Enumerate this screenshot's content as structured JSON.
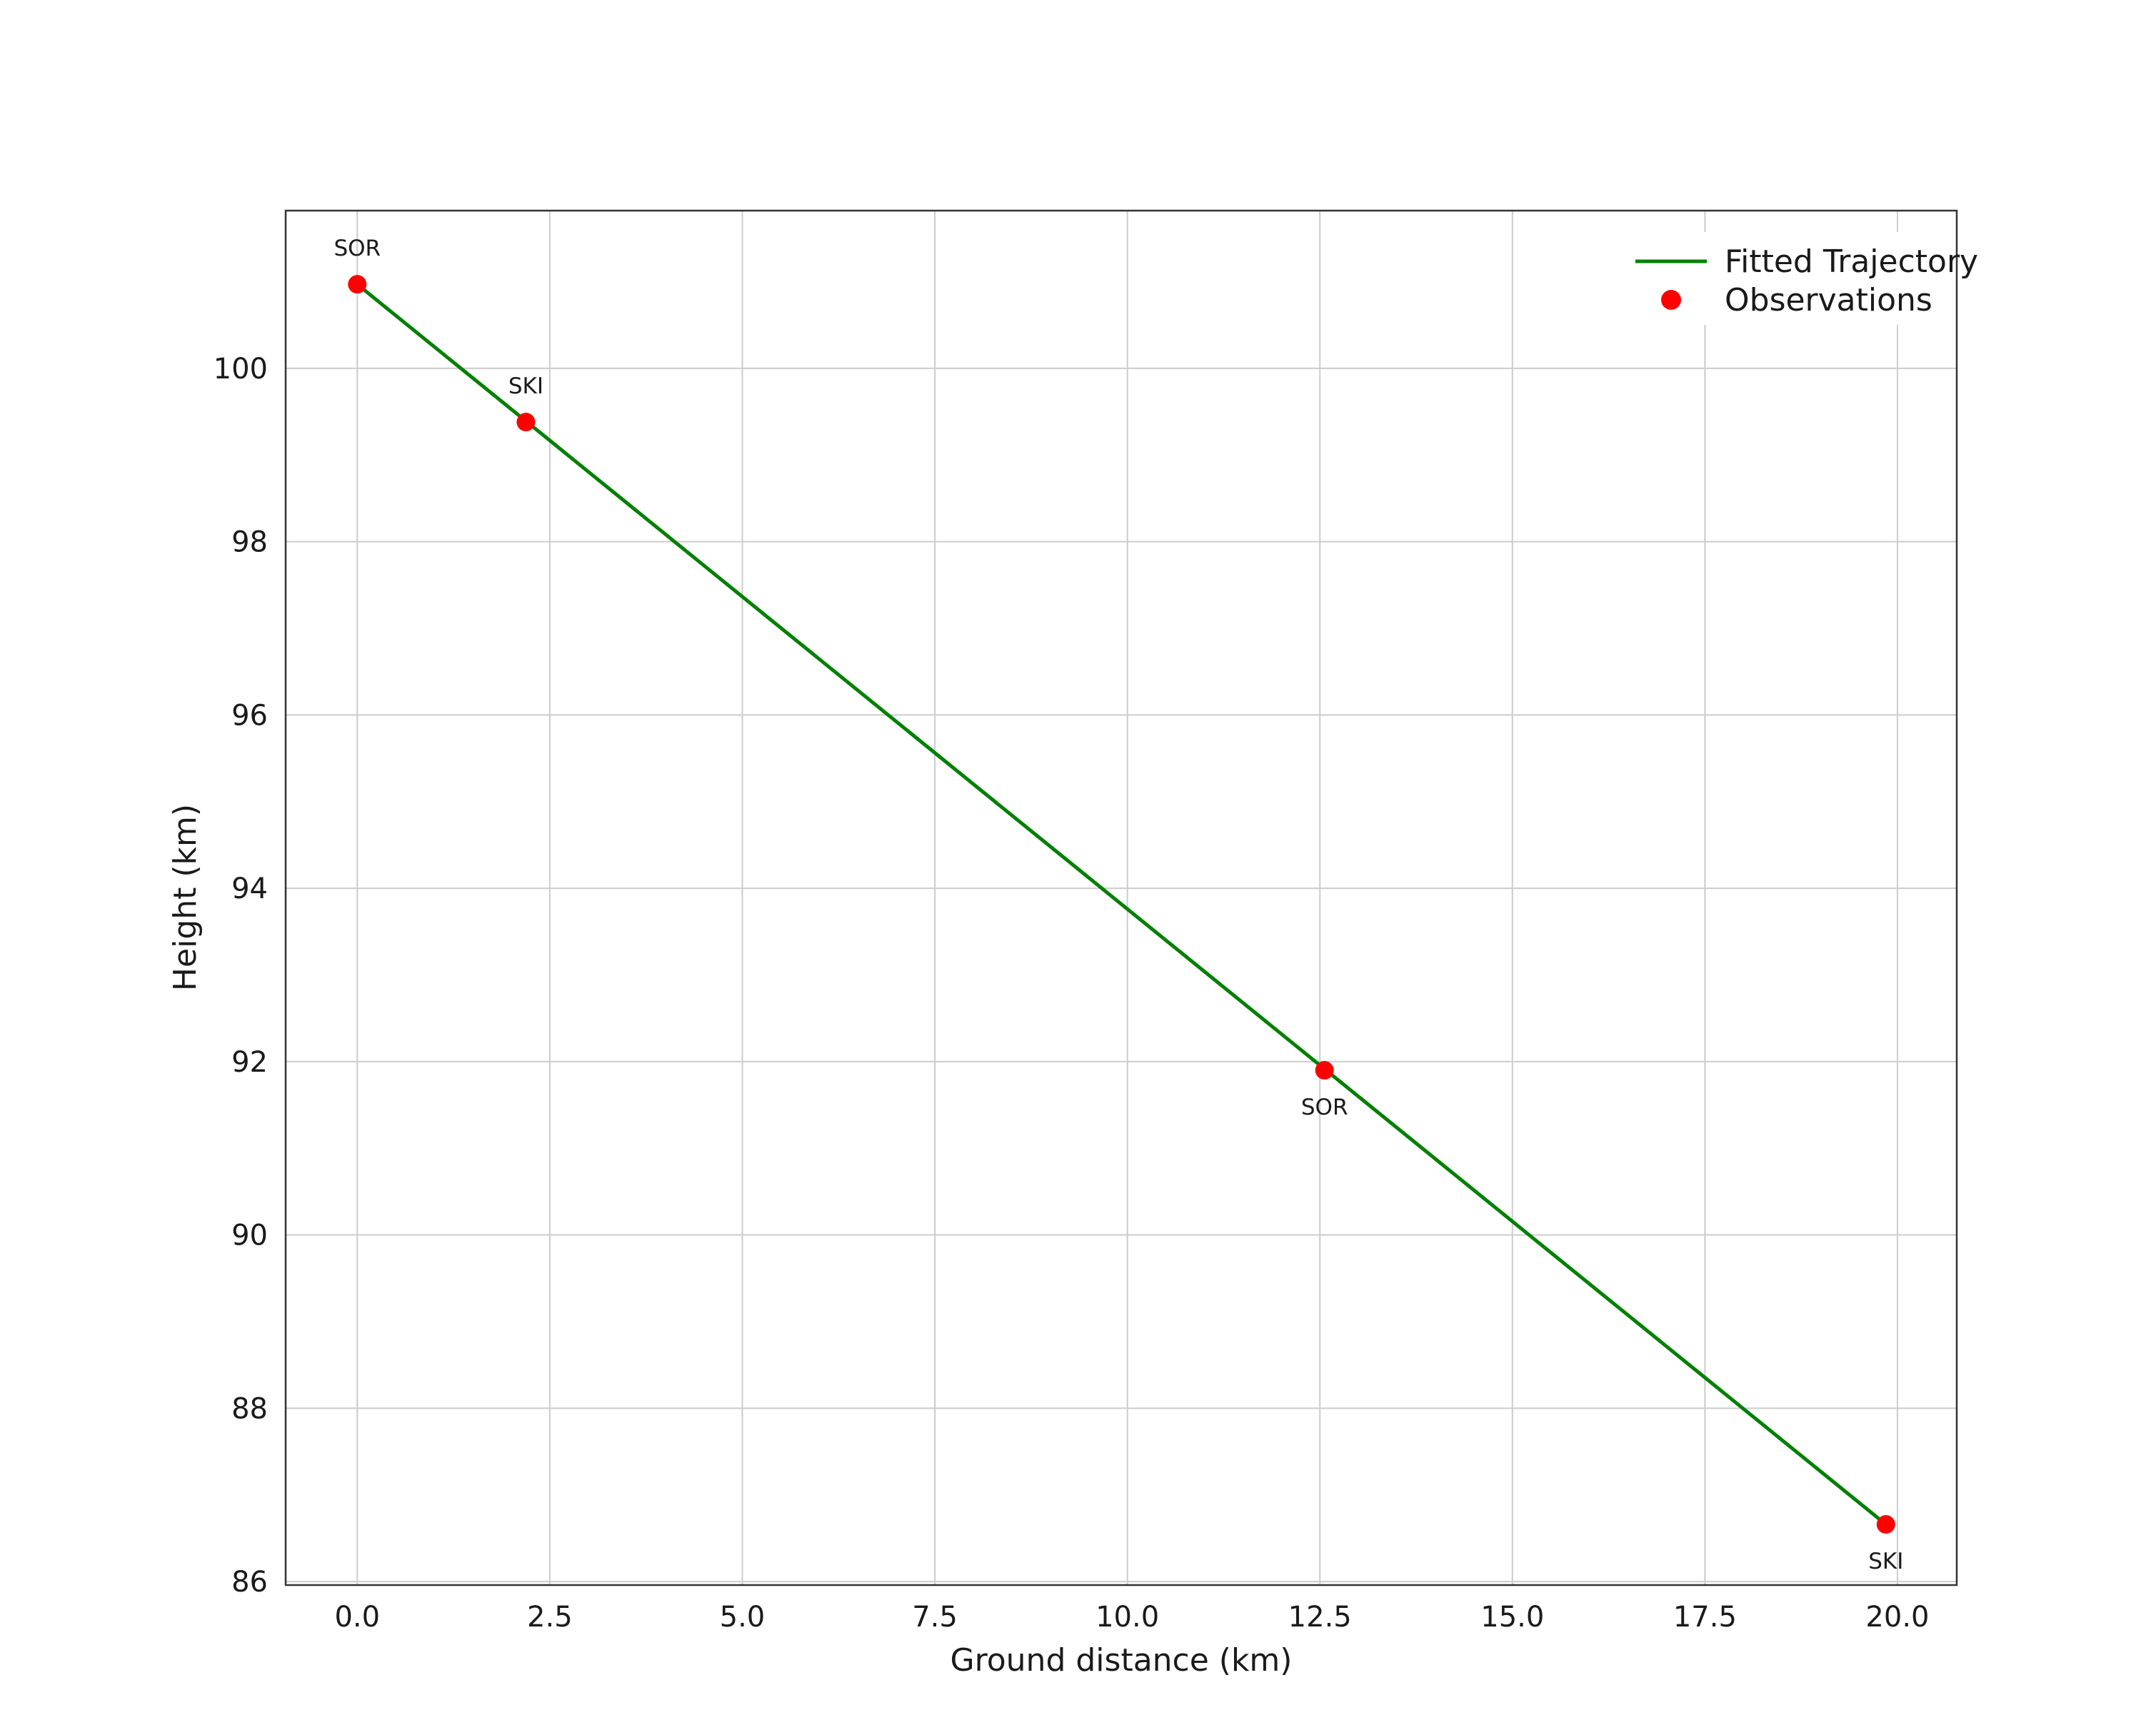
{
  "colors": {
    "background": "#ffffff",
    "grid": "#cccccc",
    "frame": "#333333",
    "text": "#1a1a1a",
    "line": "#008000",
    "marker": "#ff0000"
  },
  "chart_data": {
    "type": "line",
    "title": "",
    "xlabel": "Ground distance (km)",
    "ylabel": "Height (km)",
    "xlim": [
      -0.93,
      20.77
    ],
    "ylim": [
      85.96,
      101.82
    ],
    "xticks": [
      0.0,
      2.5,
      5.0,
      7.5,
      10.0,
      12.5,
      15.0,
      17.5,
      20.0
    ],
    "xtick_labels": [
      "0.0",
      "2.5",
      "5.0",
      "7.5",
      "10.0",
      "12.5",
      "15.0",
      "17.5",
      "20.0"
    ],
    "yticks": [
      86,
      88,
      90,
      92,
      94,
      96,
      98,
      100
    ],
    "ytick_labels": [
      "86",
      "88",
      "90",
      "92",
      "94",
      "96",
      "98",
      "100"
    ],
    "grid": true,
    "legend_position": "upper right",
    "series": [
      {
        "name": "Fitted Trajectory",
        "type": "line",
        "color": "#008000",
        "x": [
          0.0,
          19.85
        ],
        "y": [
          100.97,
          86.66
        ]
      },
      {
        "name": "Observations",
        "type": "scatter",
        "color": "#ff0000",
        "points": [
          {
            "x": 0.0,
            "y": 100.97,
            "label": "SOR",
            "label_pos": "above"
          },
          {
            "x": 2.19,
            "y": 99.38,
            "label": "SKI",
            "label_pos": "above"
          },
          {
            "x": 12.56,
            "y": 91.9,
            "label": "SOR",
            "label_pos": "below"
          },
          {
            "x": 19.85,
            "y": 86.66,
            "label": "SKI",
            "label_pos": "below"
          }
        ]
      }
    ],
    "legend": [
      {
        "label": "Fitted Trajectory",
        "marker": "line",
        "color": "#008000"
      },
      {
        "label": "Observations",
        "marker": "dot",
        "color": "#ff0000"
      }
    ]
  }
}
